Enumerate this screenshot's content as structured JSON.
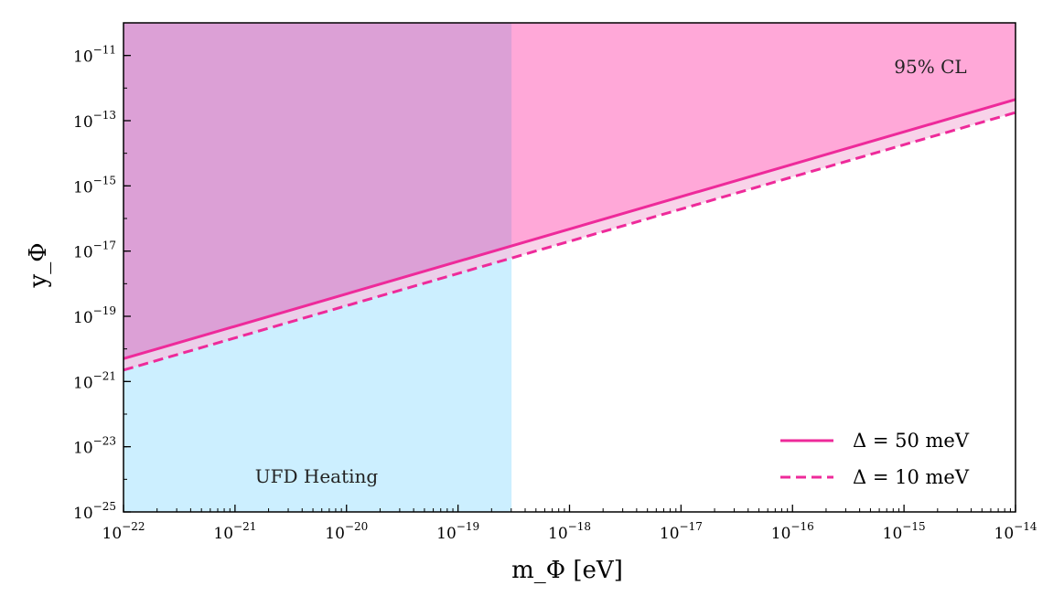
{
  "chart_data": {
    "type": "area",
    "title": "",
    "xlabel": "m_Φ [eV]",
    "ylabel": "y_Φ",
    "xscale": "log",
    "yscale": "log",
    "xlim_exp": [
      -22,
      -14
    ],
    "ylim_exp": [
      -25,
      -10
    ],
    "x_tick_exponents": [
      -22,
      -21,
      -20,
      -19,
      -18,
      -17,
      -16,
      -15,
      -14
    ],
    "y_tick_exponents": [
      -25,
      -23,
      -21,
      -19,
      -17,
      -15,
      -13,
      -11
    ],
    "tick_base": "10",
    "series": [
      {
        "name": "Δ = 50 meV",
        "style": "solid",
        "x_exp": [
          -22,
          -14
        ],
        "y_exp": [
          -20.3,
          -12.35
        ],
        "color": "#ee2a9a"
      },
      {
        "name": "Δ = 10 meV",
        "style": "dashed",
        "x_exp": [
          -22,
          -14
        ],
        "y_exp": [
          -20.65,
          -12.75
        ],
        "color": "#ee2a9a"
      }
    ],
    "regions": [
      {
        "name": "95% CL",
        "description": "excluded above the Δ = 50 meV line",
        "color": "#ffa8d8"
      },
      {
        "name": "UFD Heating",
        "x_exp_max": -18.52,
        "color": "#ccefff"
      }
    ],
    "overlap_color": "#dca0d6",
    "band_color": "#f6c4e2",
    "annotations": [
      "95% CL",
      "UFD Heating"
    ],
    "legend": {
      "placement": "bottom-right",
      "entries": [
        "Δ = 50 meV",
        "Δ = 10 meV"
      ]
    }
  }
}
